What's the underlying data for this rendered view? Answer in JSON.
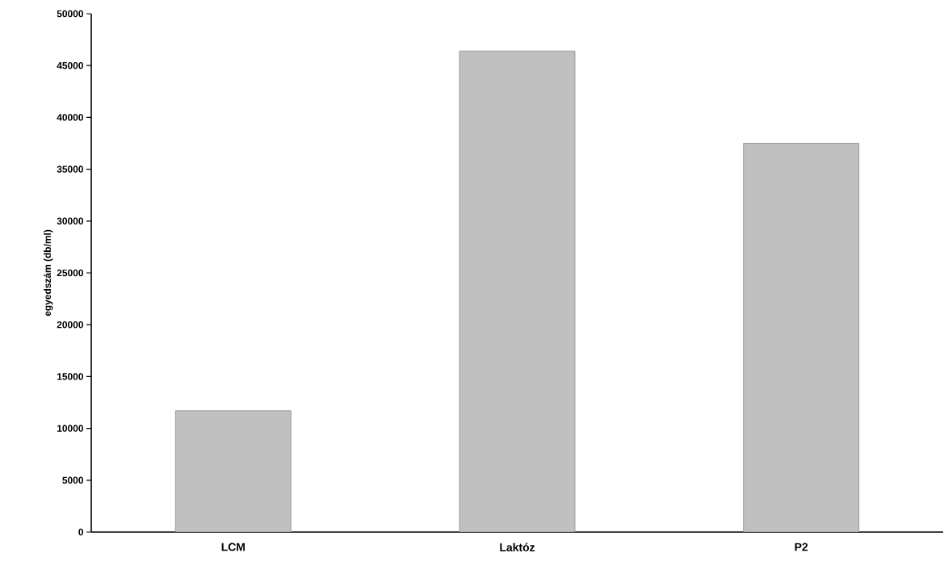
{
  "chart_data": {
    "type": "bar",
    "ylabel": "egyedszám (db/ml)",
    "categories": [
      "LCM",
      "Laktóz",
      "P2"
    ],
    "values": [
      11700,
      46400,
      37500
    ],
    "color": "#c0c0c0",
    "ylim": [
      0,
      50000
    ],
    "yticks": [
      0,
      5000,
      10000,
      15000,
      20000,
      25000,
      30000,
      35000,
      40000,
      45000,
      50000
    ],
    "grid": false
  }
}
